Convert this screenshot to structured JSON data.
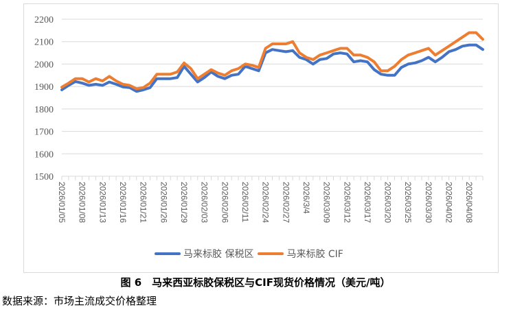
{
  "chart_data": {
    "type": "line",
    "title": "",
    "xlabel": "",
    "ylabel": "",
    "ylim": [
      1500,
      2200
    ],
    "yticks": [
      1500,
      1600,
      1700,
      1800,
      1900,
      2000,
      2100,
      2200
    ],
    "grid": true,
    "legend_position": "bottom",
    "tick_labels_shown": [
      "2026/01/05",
      "2026/01/08",
      "2026/01/13",
      "2026/01/16",
      "2026/01/21",
      "2026/01/26",
      "2026/01/29",
      "2026/02/03",
      "2026/02/06",
      "2026/02/11",
      "2026/02/24",
      "2026/02/27",
      "2026/3/4",
      "2026/03/09",
      "2026/03/12",
      "2026/03/17",
      "2026/03/20",
      "2026/03/25",
      "2026/03/30",
      "2026/04/02",
      "2026/04/08"
    ],
    "label_every": 3,
    "point_count": 63,
    "series": [
      {
        "name": "马来标胶 保税区",
        "color": "#4472C4",
        "values": [
          1885,
          1905,
          1922,
          1915,
          1905,
          1910,
          1905,
          1920,
          1910,
          1898,
          1895,
          1878,
          1885,
          1895,
          1935,
          1935,
          1935,
          1940,
          1990,
          1955,
          1920,
          1940,
          1965,
          1945,
          1935,
          1950,
          1955,
          1990,
          1980,
          1970,
          2050,
          2065,
          2060,
          2055,
          2060,
          2030,
          2020,
          2000,
          2020,
          2025,
          2045,
          2050,
          2045,
          2010,
          2015,
          2010,
          1975,
          1955,
          1950,
          1950,
          1985,
          2000,
          2005,
          2015,
          2030,
          2010,
          2030,
          2055,
          2065,
          2080,
          2085,
          2085,
          2065
        ]
      },
      {
        "name": "马来标胶 CIF",
        "color": "#ED7D31",
        "values": [
          1897,
          1915,
          1935,
          1935,
          1920,
          1935,
          1925,
          1945,
          1925,
          1910,
          1905,
          1890,
          1895,
          1915,
          1955,
          1955,
          1955,
          1965,
          2005,
          1980,
          1935,
          1955,
          1975,
          1960,
          1950,
          1970,
          1980,
          2000,
          1995,
          1985,
          2070,
          2090,
          2090,
          2090,
          2100,
          2050,
          2030,
          2020,
          2040,
          2050,
          2060,
          2070,
          2070,
          2040,
          2040,
          2030,
          2010,
          1970,
          1970,
          1990,
          2020,
          2040,
          2050,
          2060,
          2070,
          2040,
          2060,
          2080,
          2100,
          2120,
          2140,
          2140,
          2110
        ]
      }
    ]
  },
  "legend": {
    "items": [
      {
        "label": "马来标胶 保税区",
        "color": "#4472C4"
      },
      {
        "label": "马来标胶 CIF",
        "color": "#ED7D31"
      }
    ]
  },
  "caption": "图 6　马来西亚标胶保税区与CIF现货价格情况（美元/吨）",
  "source": "数据来源：市场主流成交价格整理"
}
